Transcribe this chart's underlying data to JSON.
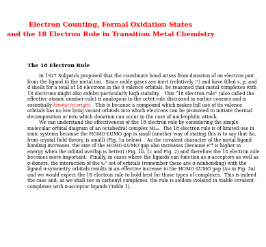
{
  "title_line1": "Electron Counting, Formal Oxidation States",
  "title_line2": "and the 18 Electron Rule in Transition Metal Chemistry",
  "title_color": "#ff0000",
  "section_heading": "The 18 Electron Rule",
  "bg_color": "#ffffff",
  "text_color": "#000000",
  "body_fontsize": 4.8,
  "title_fontsize": 7.0,
  "heading_fontsize": 5.5,
  "body_lines": [
    {
      "text": "        In 1927 Sidgwick proposed that the coordinate bond arises from donation of an electron pair",
      "color": "black",
      "style": "normal"
    },
    {
      "text": "from the ligand to the metal ion.  Since noble gases are inert (relatively !!) and have filled s, p, and",
      "color": "black",
      "style": "normal"
    },
    {
      "text": "d shells for a total of 18 electrons in the 9 valence orbitals, he reasoned that metal complexes with",
      "color": "black",
      "style": "normal"
    },
    {
      "text": "18 electrons might also exhibit particularly high stability.   This “18 electron rule” (also called the",
      "color": "black",
      "style": "normal"
    },
    {
      "text": "effective atomic number rule) is analogous to the octet rule discussed in earlier courses and is",
      "color": "black",
      "style": "normal"
    },
    {
      "text": "essentially KINETIC_IN_ORIGIN.   This is because a compound which makes full use of its valence",
      "color": "black",
      "style": "normal"
    },
    {
      "text": "orbitals has no low lying vacant orbitals into which electrons can be promoted to initiate thermal",
      "color": "black",
      "style": "normal"
    },
    {
      "text": "decomposition or into which donation can occur in the case of nucleophilic attack.",
      "color": "black",
      "style": "normal"
    },
    {
      "text": "        We can understand the effectiveness of the 18 electron rule by considering the simple",
      "color": "black",
      "style": "normal"
    },
    {
      "text": "molecular orbital diagram of an octahedral complex ML₆.  The 18 electron rule is of limited use in",
      "color": "black",
      "style": "normal"
    },
    {
      "text": "ionic systems because the HOMO-LUMO gap is small (another way of stating this is to say that Δo,",
      "color": "black",
      "style": "normal"
    },
    {
      "text": "from crystal field theory, is small) (Fig. 1a below).   As the covalent character of the metal ligand",
      "color": "black",
      "style": "normal"
    },
    {
      "text": "bonding increases, the size of the HOMO-LUMO gap also increases (because eᶜ* is higher in",
      "color": "black",
      "style": "normal"
    },
    {
      "text": "energy when the orbital overlap is better) (Fig. 1b, 1c and Fig. 2) and therefore the 18 electron rule",
      "color": "black",
      "style": "normal"
    },
    {
      "text": "becomes more important.  Finally, in cases where the ligands can function as π-acceptors as well as",
      "color": "black",
      "style": "normal"
    },
    {
      "text": "σ-donors, the interaction of the t₂ᴳ set of orbitals (remember these are σ-nonbonding) with the",
      "color": "black",
      "style": "normal"
    },
    {
      "text": "ligand π-symmetry orbitals results in an effective increase in the HOMO-LUMO gap (Δo in Fig. 3a)",
      "color": "black",
      "style": "normal"
    },
    {
      "text": "and we would expect the 18 electron rule to hold best for those types of complexes.  This is indeed",
      "color": "black",
      "style": "normal"
    },
    {
      "text": "the case and, as we shall see in carbonyl complexes, the rule is seldom violated in stable covalent",
      "color": "black",
      "style": "normal"
    },
    {
      "text": "complexes with π-acceptor ligands (Table 1).",
      "color": "black",
      "style": "normal"
    }
  ],
  "kinetic_before": "essentially ",
  "kinetic_red": "kinetic in origin",
  "kinetic_after": ".   This is because a compound which makes full use of its valence",
  "kinetic_line_idx": 5
}
